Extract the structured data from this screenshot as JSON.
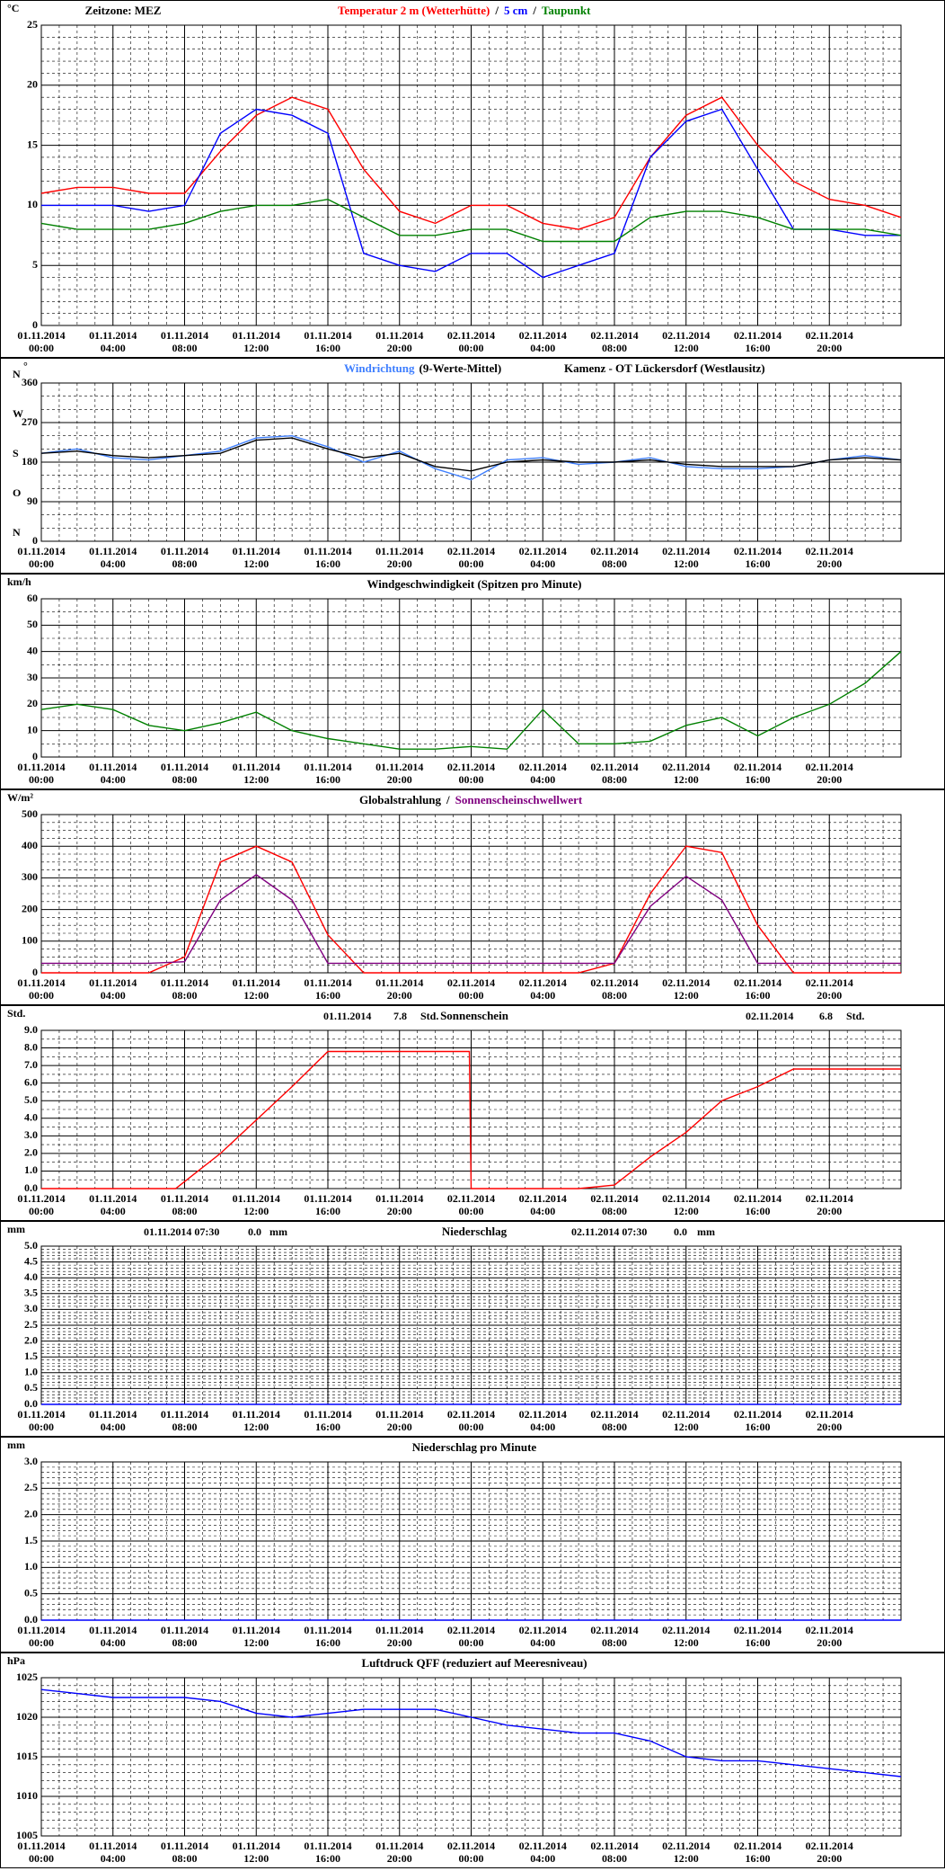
{
  "time_axis": {
    "xlim": [
      0,
      48
    ],
    "minor": 4,
    "x": [
      0,
      2,
      4,
      6,
      8,
      10,
      12,
      14,
      16,
      18,
      20,
      22,
      24,
      26,
      28,
      30,
      32,
      34,
      36,
      38,
      40,
      42,
      44,
      46,
      48
    ],
    "xticks": [
      {
        "value": 0,
        "label": "01.11.2014 00:00"
      },
      {
        "value": 4,
        "label": "01.11.2014 04:00"
      },
      {
        "value": 8,
        "label": "01.11.2014 08:00"
      },
      {
        "value": 12,
        "label": "01.11.2014 12:00"
      },
      {
        "value": 16,
        "label": "01.11.2014 16:00"
      },
      {
        "value": 20,
        "label": "01.11.2014 20:00"
      },
      {
        "value": 24,
        "label": "02.11.2014 00:00"
      },
      {
        "value": 28,
        "label": "02.11.2014 04:00"
      },
      {
        "value": 32,
        "label": "02.11.2014 08:00"
      },
      {
        "value": 36,
        "label": "02.11.2014 12:00"
      },
      {
        "value": 40,
        "label": "02.11.2014 16:00"
      },
      {
        "value": 44,
        "label": "02.11.2014 20:00"
      }
    ]
  },
  "chart_data": [
    {
      "type": "line",
      "unit": "°C",
      "legend": true,
      "legend_separator": "/",
      "annotations": [
        "Zeitzone: MEZ"
      ],
      "ylim": [
        0,
        25
      ],
      "yticks": [
        0,
        5,
        10,
        15,
        20,
        25
      ],
      "yminor": 5,
      "series": [
        {
          "name": "Temperatur 2 m (Wetterhütte)",
          "color": "#ff0000",
          "values": [
            11,
            11.5,
            11.5,
            11,
            11,
            14.5,
            17.5,
            19,
            18,
            13,
            9.5,
            8.5,
            10,
            10,
            8.5,
            8,
            9,
            14,
            17.5,
            19,
            15,
            12,
            10.5,
            10,
            9
          ]
        },
        {
          "name": "5 cm",
          "color": "#0000ff",
          "values": [
            10,
            10,
            10,
            9.5,
            10,
            16,
            18,
            17.5,
            16,
            6,
            5,
            4.5,
            6,
            6,
            4,
            5,
            6,
            14,
            17,
            18,
            13,
            8,
            8,
            7.5,
            7.5
          ]
        },
        {
          "name": "Taupunkt",
          "color": "#008000",
          "values": [
            8.5,
            8,
            8,
            8,
            8.5,
            9.5,
            10,
            10,
            10.5,
            9,
            7.5,
            7.5,
            8,
            8,
            7,
            7,
            7,
            9,
            9.5,
            9.5,
            9,
            8,
            8,
            8,
            7.5
          ]
        }
      ]
    },
    {
      "type": "line",
      "unit": "°",
      "legend": true,
      "title": "(9-Werte-Mittel)",
      "annotations": [
        "Kamenz - OT Lückersdorf (Westlausitz)"
      ],
      "ylim": [
        0,
        360
      ],
      "yticks": [
        0,
        90,
        180,
        270,
        360
      ],
      "yminor": 3,
      "direction_labels": [
        "N",
        "O",
        "S",
        "W",
        "N"
      ],
      "series": [
        {
          "name": "Windrichtung",
          "color": "#3f7fff",
          "values": [
            200,
            210,
            190,
            185,
            195,
            205,
            235,
            240,
            215,
            180,
            205,
            165,
            140,
            185,
            190,
            175,
            180,
            190,
            170,
            165,
            165,
            170,
            185,
            195,
            185
          ]
        },
        {
          "color": "#000000",
          "values": [
            200,
            205,
            195,
            190,
            195,
            200,
            230,
            235,
            210,
            190,
            200,
            170,
            160,
            180,
            185,
            180,
            180,
            185,
            175,
            170,
            170,
            170,
            185,
            190,
            185
          ]
        }
      ]
    },
    {
      "type": "line",
      "unit": "km/h",
      "title": "Windgeschwindigkeit (Spitzen pro Minute)",
      "ylim": [
        0,
        60
      ],
      "yticks": [
        0,
        10,
        20,
        30,
        40,
        50,
        60
      ],
      "yminor": 2,
      "series": [
        {
          "color": "#008000",
          "values": [
            18,
            20,
            18,
            12,
            10,
            13,
            17,
            10,
            7,
            5,
            3,
            3,
            4,
            3,
            18,
            5,
            5,
            6,
            12,
            15,
            8,
            15,
            20,
            28,
            40
          ]
        }
      ]
    },
    {
      "type": "line",
      "unit": "W/m²",
      "legend": true,
      "legend_separator": "/",
      "ylim": [
        0,
        500
      ],
      "yticks": [
        0,
        100,
        200,
        300,
        400,
        500
      ],
      "yminor": 4,
      "series": [
        {
          "name": "Globalstrahlung",
          "legend_color": "#000000",
          "color": "#ff0000",
          "values": [
            0,
            0,
            0,
            0,
            50,
            350,
            400,
            350,
            120,
            0,
            0,
            0,
            0,
            0,
            0,
            0,
            30,
            250,
            400,
            380,
            150,
            0,
            0,
            0,
            0
          ]
        },
        {
          "name": "Sonnenscheinschwellwert",
          "color": "#800080",
          "values": [
            30,
            30,
            30,
            30,
            35,
            230,
            310,
            230,
            30,
            30,
            30,
            30,
            30,
            30,
            30,
            30,
            30,
            210,
            305,
            230,
            30,
            30,
            30,
            30,
            30
          ]
        }
      ]
    },
    {
      "type": "line",
      "unit": "Std.",
      "title": "Sonnenschein",
      "annotations": [
        "01.11.2014",
        "7.8",
        "Std.",
        "02.11.2014",
        "6.8",
        "Std."
      ],
      "ylim": [
        0,
        9
      ],
      "yminor": 2,
      "yticks": [
        {
          "value": 0,
          "label": "0.0"
        },
        {
          "value": 1,
          "label": "1.0"
        },
        {
          "value": 2,
          "label": "2.0"
        },
        {
          "value": 3,
          "label": "3.0"
        },
        {
          "value": 4,
          "label": "4.0"
        },
        {
          "value": 5,
          "label": "5.0"
        },
        {
          "value": 6,
          "label": "6.0"
        },
        {
          "value": 7,
          "label": "7.0"
        },
        {
          "value": 8,
          "label": "8.0"
        },
        {
          "value": 9,
          "label": "9.0"
        }
      ],
      "x": [
        0,
        2,
        4,
        6,
        7.5,
        8,
        10,
        12,
        14,
        16,
        18,
        20,
        22,
        23.9,
        24,
        26,
        28,
        30,
        32,
        34,
        36,
        38,
        40,
        42,
        44,
        46,
        48
      ],
      "series": [
        {
          "color": "#ff0000",
          "values": [
            0,
            0,
            0,
            0,
            0,
            0.4,
            2.0,
            3.9,
            5.8,
            7.8,
            7.8,
            7.8,
            7.8,
            7.8,
            0,
            0,
            0,
            0,
            0.2,
            1.8,
            3.2,
            5.0,
            5.8,
            6.8,
            6.8,
            6.8,
            6.8
          ]
        }
      ]
    },
    {
      "type": "line",
      "unit": "mm",
      "title": "Niederschlag",
      "annotations": [
        "01.11.2014 07:30",
        "0.0",
        "mm",
        "02.11.2014 07:30",
        "0.0",
        "mm"
      ],
      "ylim": [
        0,
        5
      ],
      "yminor": 5,
      "yticks": [
        {
          "value": 0,
          "label": "0.0"
        },
        0.5,
        {
          "value": 1,
          "label": "1.0"
        },
        1.5,
        {
          "value": 2,
          "label": "2.0"
        },
        2.5,
        {
          "value": 3,
          "label": "3.0"
        },
        3.5,
        {
          "value": 4,
          "label": "4.0"
        },
        4.5,
        {
          "value": 5,
          "label": "5.0"
        }
      ],
      "series": [
        {
          "color": "#0000ff",
          "values": [
            0,
            0,
            0,
            0,
            0,
            0,
            0,
            0,
            0,
            0,
            0,
            0,
            0,
            0,
            0,
            0,
            0,
            0,
            0,
            0,
            0,
            0,
            0,
            0,
            0
          ]
        }
      ]
    },
    {
      "type": "line",
      "unit": "mm",
      "title": "Niederschlag pro Minute",
      "ylim": [
        0,
        3
      ],
      "yminor": 5,
      "yticks": [
        {
          "value": 0,
          "label": "0.0"
        },
        0.5,
        {
          "value": 1,
          "label": "1.0"
        },
        1.5,
        {
          "value": 2,
          "label": "2.0"
        },
        2.5,
        {
          "value": 3,
          "label": "3.0"
        }
      ],
      "series": [
        {
          "color": "#0000ff",
          "values": [
            0,
            0,
            0,
            0,
            0,
            0,
            0,
            0,
            0,
            0,
            0,
            0,
            0,
            0,
            0,
            0,
            0,
            0,
            0,
            0,
            0,
            0,
            0,
            0,
            0
          ]
        }
      ]
    },
    {
      "type": "line",
      "unit": "hPa",
      "title": "Luftdruck QFF (reduziert auf Meeresniveau)",
      "ylim": [
        1005,
        1025
      ],
      "yticks": [
        1005,
        1010,
        1015,
        1020,
        1025
      ],
      "yminor": 5,
      "series": [
        {
          "color": "#0000ff",
          "values": [
            1023.5,
            1023,
            1022.5,
            1022.5,
            1022.5,
            1022,
            1020.5,
            1020,
            1020.5,
            1021,
            1021,
            1021,
            1020,
            1019,
            1018.5,
            1018,
            1018,
            1017,
            1015,
            1014.5,
            1014.5,
            1014,
            1013.5,
            1013,
            1012.5
          ]
        }
      ]
    }
  ]
}
